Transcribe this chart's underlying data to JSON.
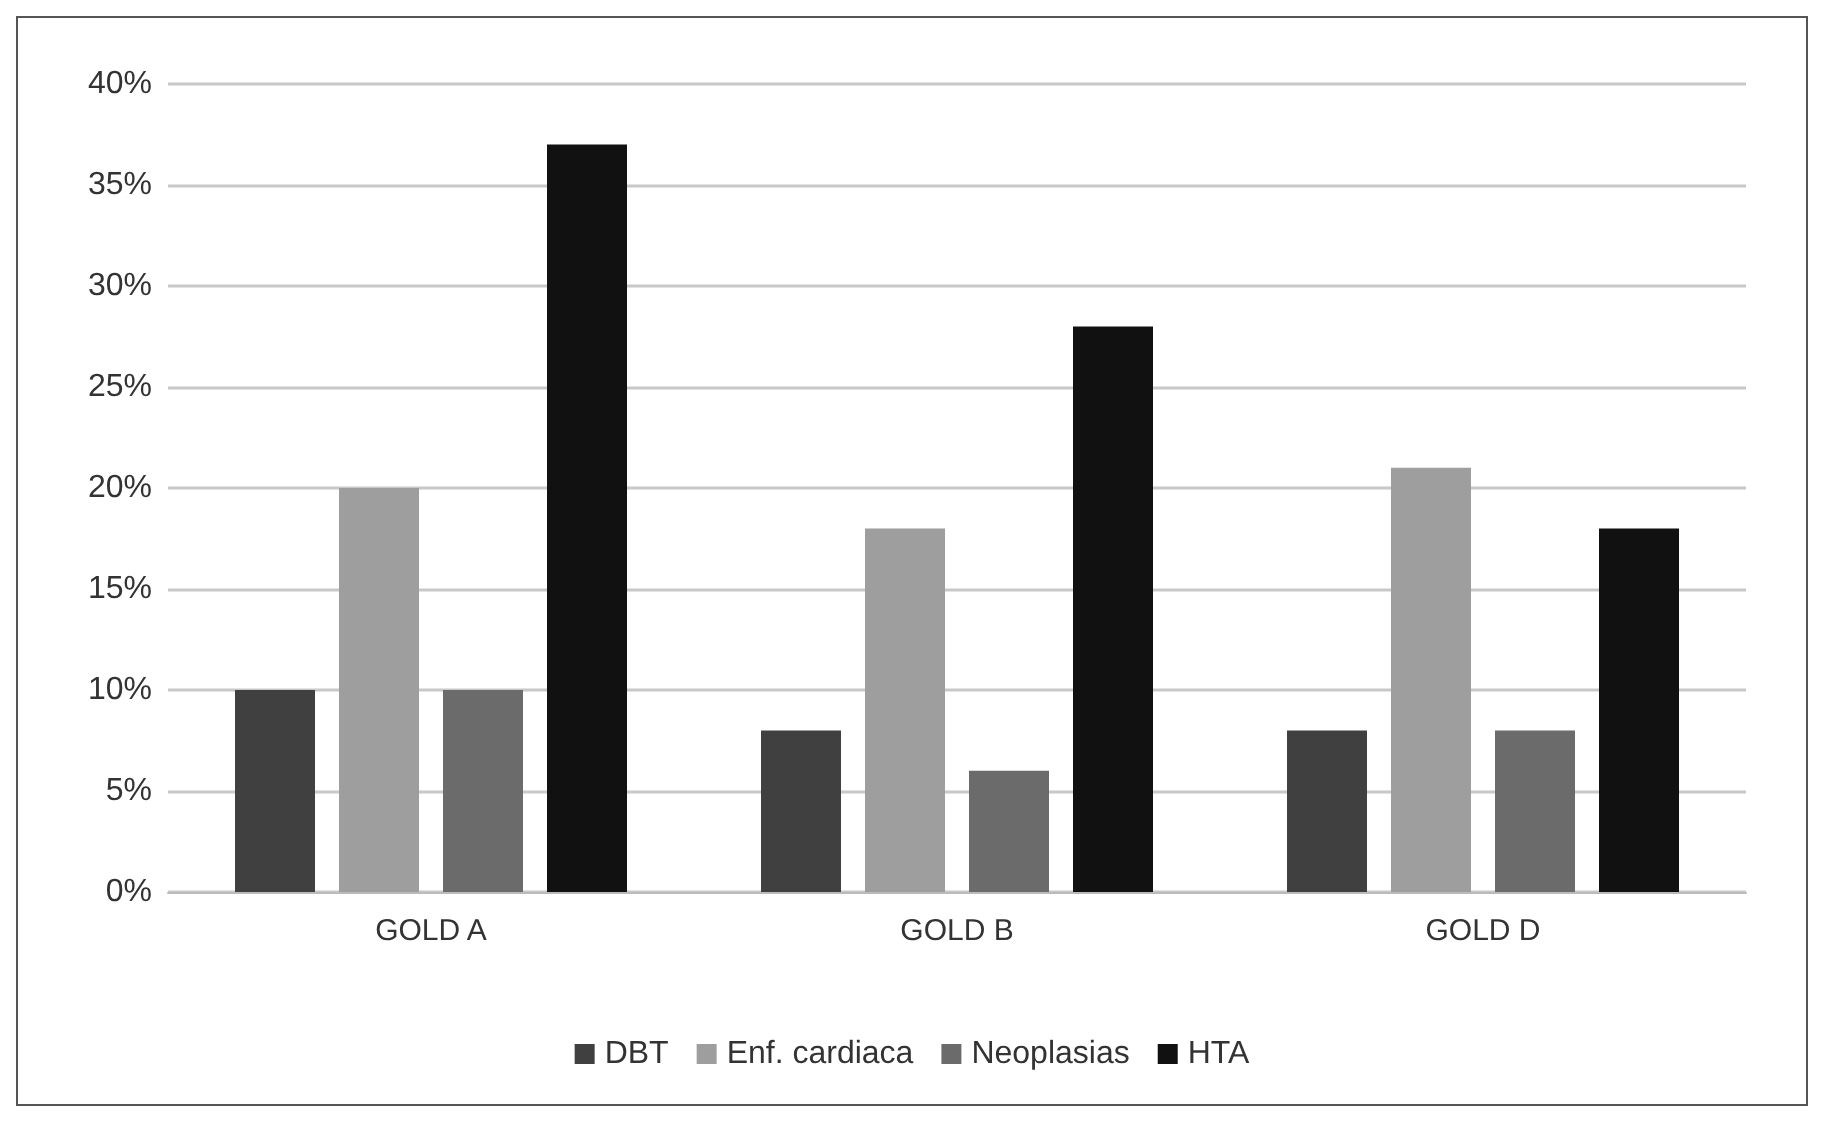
{
  "chart_data": {
    "type": "bar",
    "categories": [
      "GOLD A",
      "GOLD B",
      "GOLD D"
    ],
    "series": [
      {
        "name": "DBT",
        "color": "#404040",
        "values": [
          10,
          8,
          8
        ]
      },
      {
        "name": "Enf. cardiaca",
        "color": "#9e9e9e",
        "values": [
          20,
          18,
          21
        ]
      },
      {
        "name": "Neoplasias",
        "color": "#6b6b6b",
        "values": [
          10,
          6,
          8
        ]
      },
      {
        "name": "HTA",
        "color": "#111111",
        "values": [
          37,
          28,
          18
        ]
      }
    ],
    "ylim": [
      0,
      40
    ],
    "yticks": [
      {
        "value": 0,
        "label": "0%"
      },
      {
        "value": 5,
        "label": "5%"
      },
      {
        "value": 10,
        "label": "10%"
      },
      {
        "value": 15,
        "label": "15%"
      },
      {
        "value": 20,
        "label": "20%"
      },
      {
        "value": 25,
        "label": "25%"
      },
      {
        "value": 30,
        "label": "30%"
      },
      {
        "value": 35,
        "label": "35%"
      },
      {
        "value": 40,
        "label": "40%"
      }
    ],
    "grid": "y",
    "legend": "bottom"
  }
}
